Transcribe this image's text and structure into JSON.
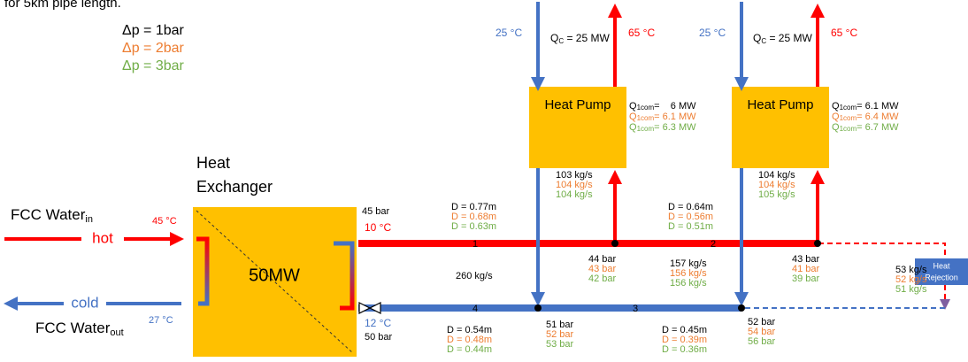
{
  "caption": "for 5km pipe length.",
  "legend": [
    "Δp = 1bar",
    "Δp = 2bar",
    "Δp = 3bar"
  ],
  "heat_exchanger": {
    "title": [
      "Heat",
      "Exchanger"
    ],
    "duty": "50MW",
    "inlet": {
      "label": "FCC Water",
      "sub": "in",
      "tag": "hot",
      "temp": "45 °C"
    },
    "outlet": {
      "label": "FCC Water",
      "sub": "out",
      "tag": "cold",
      "temp": "27 °C"
    },
    "supply": {
      "pressure": "45 bar",
      "temp": "10 °C"
    },
    "return": {
      "temp": "12 °C",
      "pressure": "50 bar"
    }
  },
  "heat_pumps": [
    {
      "label": "Heat Pump",
      "source_temp": "25 °C",
      "q": "Q",
      "q_sub": "C",
      "q_value": " = 25 MW",
      "sink_temp": "65 °C",
      "q1com": "Q",
      "q1com_sub": "1com",
      "q1com_values": [
        "=    6 MW",
        "= 6.1 MW",
        "= 6.3 MW"
      ],
      "flows": [
        "103 kg/s",
        "104 kg/s",
        "104 kg/s"
      ]
    },
    {
      "label": "Heat Pump",
      "source_temp": "25 °C",
      "q": "Q",
      "q_sub": "C",
      "q_value": " = 25 MW",
      "sink_temp": "65 °C",
      "q1com": "Q",
      "q1com_sub": "1com",
      "q1com_values": [
        "= 6.1 MW",
        "= 6.4 MW",
        "= 6.7 MW"
      ],
      "flows": [
        "104 kg/s",
        "104 kg/s",
        "105 kg/s"
      ]
    }
  ],
  "pipes": [
    {
      "number": "1",
      "diameters": [
        "D = 0.77m",
        "D = 0.68m",
        "D = 0.63m"
      ]
    },
    {
      "number": "2",
      "diameters": [
        "D = 0.64m",
        "D = 0.56m",
        "D = 0.51m"
      ]
    },
    {
      "number": "3",
      "diameters": [
        "D = 0.45m",
        "D = 0.39m",
        "D = 0.36m"
      ]
    },
    {
      "number": "4",
      "diameters": [
        "D = 0.54m",
        "D = 0.48m",
        "D = 0.44m"
      ]
    }
  ],
  "main_flow": "260 kg/s",
  "nodes": [
    {
      "pressures": [
        "44 bar",
        "43 bar",
        "42 bar"
      ]
    },
    {
      "pressures": [
        "43 bar",
        "41 bar",
        "39 bar"
      ]
    },
    {
      "pressures": [
        "51 bar",
        "52 bar",
        "53 bar"
      ]
    },
    {
      "pressures": [
        "52 bar",
        "54 bar",
        "56 bar"
      ]
    }
  ],
  "branch_flow": [
    "157 kg/s",
    "156 kg/s",
    "156 kg/s"
  ],
  "rejection_flow": [
    "53 kg/s",
    "52 kg/s",
    "51 kg/s"
  ],
  "heat_rejection": [
    "Heat",
    "Rejection"
  ]
}
